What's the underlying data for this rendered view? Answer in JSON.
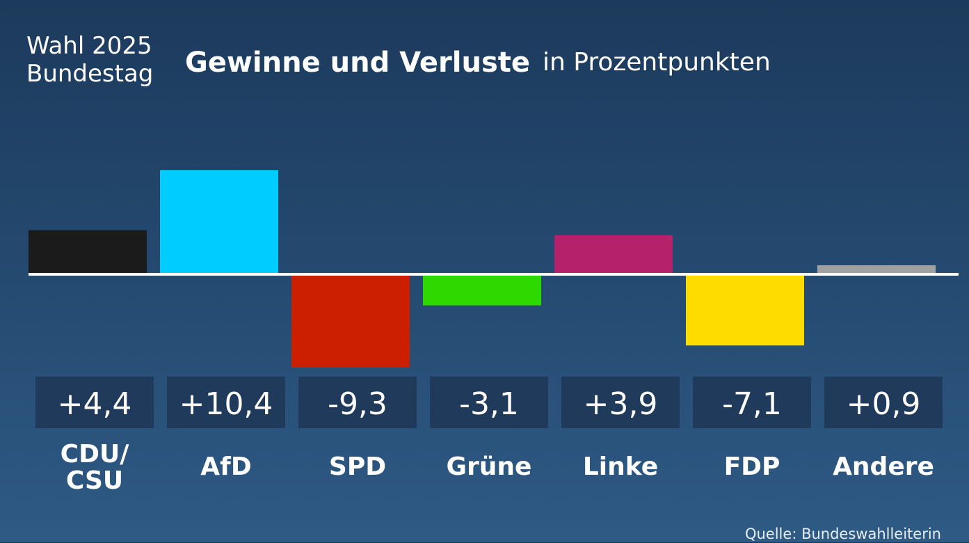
{
  "header": {
    "election_line1": "Wahl 2025",
    "election_line2": "Bundestag",
    "title": "Gewinne und Verluste",
    "subtitle": "in Prozentpunkten"
  },
  "source": "Quelle: Bundeswahlleiterin",
  "chart_data": {
    "type": "bar",
    "title": "Gewinne und Verluste",
    "subtitle": "in Prozentpunkten",
    "categories": [
      "CDU/\nCSU",
      "AfD",
      "SPD",
      "Grüne",
      "Linke",
      "FDP",
      "Andere"
    ],
    "values": [
      4.4,
      10.4,
      -9.3,
      -3.1,
      3.9,
      -7.1,
      0.9
    ],
    "value_labels": [
      "+4,4",
      "+10,4",
      "-9,3",
      "-3,1",
      "+3,9",
      "-7,1",
      "+0,9"
    ],
    "colors": [
      "#1b1b1b",
      "#00ccff",
      "#cc1e00",
      "#2ed900",
      "#b5216b",
      "#ffdc00",
      "#a0a0a0"
    ],
    "ylim": [
      -10.4,
      10.4
    ],
    "grid": false,
    "legend": "none"
  }
}
